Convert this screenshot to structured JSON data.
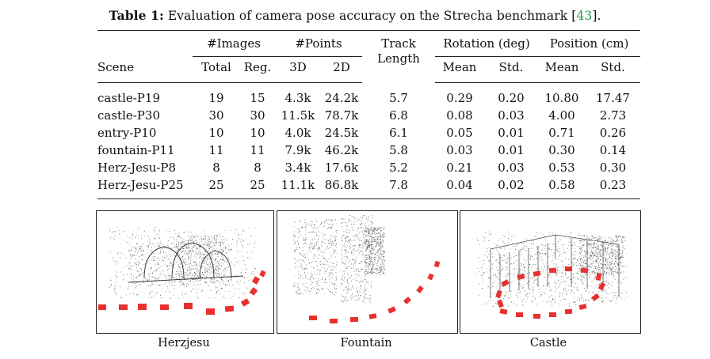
{
  "caption": {
    "label": "Table 1:",
    "text": "Evaluation of camera pose accuracy on the Strecha benchmark",
    "ref_open": "[",
    "ref": "43",
    "ref_close": "]."
  },
  "table": {
    "groups": {
      "images": "#Images",
      "points": "#Points",
      "track": "Track",
      "track2": "Length",
      "rotation": "Rotation (deg)",
      "position": "Position (cm)"
    },
    "columns": [
      "Scene",
      "Total",
      "Reg.",
      "3D",
      "2D",
      "Mean",
      "Std.",
      "Mean",
      "Std."
    ],
    "rows": [
      [
        "castle-P19",
        "19",
        "15",
        "4.3k",
        "24.2k",
        "5.7",
        "0.29",
        "0.20",
        "10.80",
        "17.47"
      ],
      [
        "castle-P30",
        "30",
        "30",
        "11.5k",
        "78.7k",
        "6.8",
        "0.08",
        "0.03",
        "4.00",
        "2.73"
      ],
      [
        "entry-P10",
        "10",
        "10",
        "4.0k",
        "24.5k",
        "6.1",
        "0.05",
        "0.01",
        "0.71",
        "0.26"
      ],
      [
        "fountain-P11",
        "11",
        "11",
        "7.9k",
        "46.2k",
        "5.8",
        "0.03",
        "0.01",
        "0.30",
        "0.14"
      ],
      [
        "Herz-Jesu-P8",
        "8",
        "8",
        "3.4k",
        "17.6k",
        "5.2",
        "0.21",
        "0.03",
        "0.53",
        "0.30"
      ],
      [
        "Herz-Jesu-P25",
        "25",
        "25",
        "11.1k",
        "86.8k",
        "7.8",
        "0.04",
        "0.02",
        "0.58",
        "0.23"
      ]
    ]
  },
  "figure": {
    "panels": [
      {
        "label": "Herzjesu"
      },
      {
        "label": "Fountain"
      },
      {
        "label": "Castle"
      }
    ],
    "camera_color": "#e8312f",
    "point_color": "#2b2b2b"
  }
}
